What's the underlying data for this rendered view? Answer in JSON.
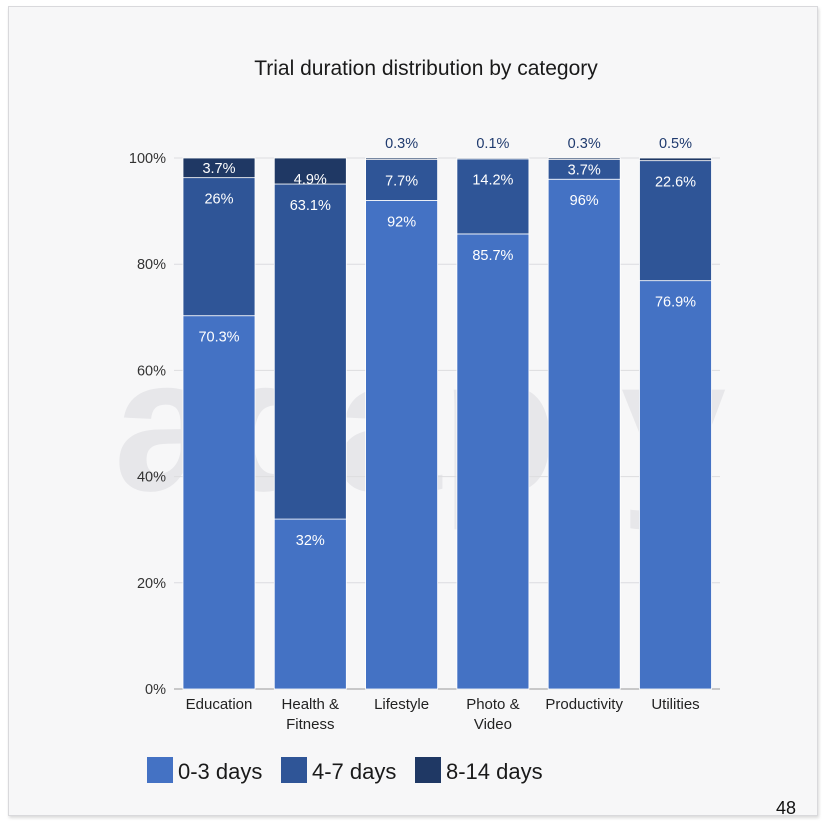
{
  "page_number": "48",
  "watermark": "adapty",
  "chart_data": {
    "type": "bar",
    "stacked": true,
    "title": "Trial duration distribution by category",
    "categories": [
      [
        "Education"
      ],
      [
        "Health &",
        "Fitness"
      ],
      [
        "Lifestyle"
      ],
      [
        "Photo &",
        "Video"
      ],
      [
        "Productivity"
      ],
      [
        "Utilities"
      ]
    ],
    "series": [
      {
        "name": "0-3 days",
        "color": "#4472c4",
        "values": [
          70.3,
          32,
          92,
          85.7,
          96,
          76.9
        ],
        "labels": [
          "70.3%",
          "32%",
          "92%",
          "85.7%",
          "96%",
          "76.9%"
        ]
      },
      {
        "name": "4-7 days",
        "color": "#2f5597",
        "values": [
          26,
          63.1,
          7.7,
          14.2,
          3.7,
          22.6
        ],
        "labels": [
          "26%",
          "63.1%",
          "7.7%",
          "14.2%",
          "3.7%",
          "22.6%"
        ]
      },
      {
        "name": "8-14 days",
        "color": "#1f3864",
        "values": [
          3.7,
          4.9,
          0.3,
          0.1,
          0.3,
          0.5
        ],
        "labels": [
          "3.7%",
          "4.9%",
          "0.3%",
          "0.1%",
          "0.3%",
          "0.5%"
        ]
      }
    ],
    "ylim": [
      0,
      100
    ],
    "yticks": [
      "0%",
      "20%",
      "40%",
      "60%",
      "80%",
      "100%"
    ],
    "grid": true,
    "legend": "bottom-left"
  }
}
